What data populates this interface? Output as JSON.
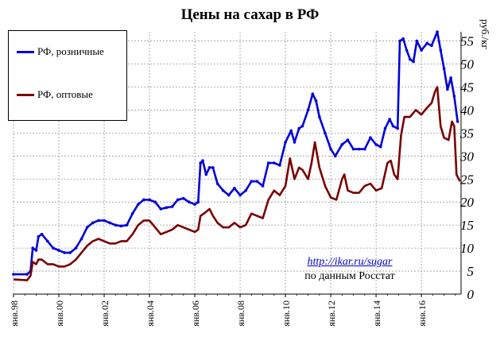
{
  "title": "Цены на сахар  в РФ",
  "unit": "руб./кг",
  "source_url": "http://ikar.ru/sugar",
  "source_note": "по данным  Росстат",
  "chart_data": {
    "type": "line",
    "title": "Цены на сахар  в РФ",
    "ylabel": "руб./кг",
    "ylim": [
      0,
      57
    ],
    "yticks": [
      0,
      5,
      10,
      15,
      20,
      25,
      30,
      35,
      40,
      45,
      50,
      55
    ],
    "ytick_labels": [
      "0",
      "5",
      "10",
      "15",
      "20",
      "25",
      "30",
      "35",
      "40",
      "45",
      "50",
      "55"
    ],
    "xlim": [
      1998.0,
      2017.75
    ],
    "xticks": [
      1998,
      2000,
      2002,
      2004,
      2006,
      2008,
      2010,
      2012,
      2014,
      2016
    ],
    "xtick_labels": [
      "янв.98",
      "янв.00",
      "янв.02",
      "янв.04",
      "янв.06",
      "янв.08",
      "янв.10",
      "янв.12",
      "янв.14",
      "янв.16"
    ],
    "grid": true,
    "legend_position": "top-left",
    "series": [
      {
        "name": "РФ, розничные",
        "color": "#0000dd",
        "markers": true,
        "points": [
          [
            1998.0,
            4.3
          ],
          [
            1998.6,
            4.3
          ],
          [
            1998.75,
            5.0
          ],
          [
            1998.85,
            10.0
          ],
          [
            1999.0,
            9.5
          ],
          [
            1999.1,
            12.5
          ],
          [
            1999.25,
            13.0
          ],
          [
            1999.5,
            11.5
          ],
          [
            1999.75,
            10.0
          ],
          [
            2000.0,
            9.5
          ],
          [
            2000.25,
            9.0
          ],
          [
            2000.5,
            9.0
          ],
          [
            2000.75,
            10.0
          ],
          [
            2001.0,
            12.0
          ],
          [
            2001.25,
            14.5
          ],
          [
            2001.5,
            15.5
          ],
          [
            2001.75,
            16.0
          ],
          [
            2002.0,
            16.0
          ],
          [
            2002.25,
            15.5
          ],
          [
            2002.5,
            15.0
          ],
          [
            2002.75,
            14.8
          ],
          [
            2003.0,
            15.0
          ],
          [
            2003.25,
            17.5
          ],
          [
            2003.5,
            19.5
          ],
          [
            2003.75,
            20.5
          ],
          [
            2004.0,
            20.5
          ],
          [
            2004.25,
            20.0
          ],
          [
            2004.5,
            18.5
          ],
          [
            2004.75,
            18.8
          ],
          [
            2005.0,
            19.0
          ],
          [
            2005.25,
            20.5
          ],
          [
            2005.5,
            20.8
          ],
          [
            2005.75,
            20.0
          ],
          [
            2006.0,
            19.5
          ],
          [
            2006.15,
            20.0
          ],
          [
            2006.25,
            28.5
          ],
          [
            2006.35,
            29.0
          ],
          [
            2006.5,
            26.0
          ],
          [
            2006.65,
            27.5
          ],
          [
            2006.8,
            27.5
          ],
          [
            2007.0,
            24.0
          ],
          [
            2007.25,
            22.5
          ],
          [
            2007.5,
            21.5
          ],
          [
            2007.75,
            23.0
          ],
          [
            2008.0,
            21.5
          ],
          [
            2008.25,
            22.5
          ],
          [
            2008.5,
            24.5
          ],
          [
            2008.75,
            24.5
          ],
          [
            2009.0,
            23.5
          ],
          [
            2009.25,
            28.5
          ],
          [
            2009.5,
            28.5
          ],
          [
            2009.75,
            28.0
          ],
          [
            2010.0,
            33.0
          ],
          [
            2010.25,
            35.5
          ],
          [
            2010.4,
            33.0
          ],
          [
            2010.6,
            36.0
          ],
          [
            2010.75,
            36.5
          ],
          [
            2011.0,
            40.0
          ],
          [
            2011.2,
            43.5
          ],
          [
            2011.35,
            42.0
          ],
          [
            2011.5,
            38.5
          ],
          [
            2011.75,
            35.0
          ],
          [
            2012.0,
            31.5
          ],
          [
            2012.2,
            30.0
          ],
          [
            2012.5,
            32.5
          ],
          [
            2012.75,
            33.5
          ],
          [
            2013.0,
            31.5
          ],
          [
            2013.25,
            31.5
          ],
          [
            2013.5,
            31.5
          ],
          [
            2013.75,
            34.0
          ],
          [
            2014.0,
            32.5
          ],
          [
            2014.2,
            32.0
          ],
          [
            2014.4,
            36.0
          ],
          [
            2014.6,
            38.0
          ],
          [
            2014.75,
            36.5
          ],
          [
            2014.95,
            36.0
          ],
          [
            2015.05,
            55.0
          ],
          [
            2015.2,
            55.5
          ],
          [
            2015.35,
            53.0
          ],
          [
            2015.5,
            51.0
          ],
          [
            2015.65,
            50.5
          ],
          [
            2015.8,
            55.0
          ],
          [
            2016.0,
            53.0
          ],
          [
            2016.25,
            54.5
          ],
          [
            2016.45,
            54.0
          ],
          [
            2016.7,
            57.0
          ],
          [
            2016.85,
            53.0
          ],
          [
            2017.0,
            49.0
          ],
          [
            2017.15,
            44.5
          ],
          [
            2017.3,
            47.0
          ],
          [
            2017.45,
            43.0
          ],
          [
            2017.6,
            37.5
          ]
        ]
      },
      {
        "name": "РФ, оптовые",
        "color": "#7a0000",
        "markers": false,
        "points": [
          [
            1998.0,
            3.2
          ],
          [
            1998.6,
            3.0
          ],
          [
            1998.75,
            4.0
          ],
          [
            1998.85,
            7.0
          ],
          [
            1999.0,
            6.5
          ],
          [
            1999.1,
            7.5
          ],
          [
            1999.25,
            7.5
          ],
          [
            1999.5,
            6.5
          ],
          [
            1999.75,
            6.5
          ],
          [
            2000.0,
            6.0
          ],
          [
            2000.25,
            6.0
          ],
          [
            2000.5,
            6.5
          ],
          [
            2000.75,
            7.5
          ],
          [
            2001.0,
            9.0
          ],
          [
            2001.25,
            10.5
          ],
          [
            2001.5,
            11.5
          ],
          [
            2001.75,
            12.0
          ],
          [
            2002.0,
            11.5
          ],
          [
            2002.25,
            11.0
          ],
          [
            2002.5,
            11.0
          ],
          [
            2002.75,
            11.5
          ],
          [
            2003.0,
            11.5
          ],
          [
            2003.25,
            13.0
          ],
          [
            2003.5,
            15.0
          ],
          [
            2003.75,
            16.0
          ],
          [
            2004.0,
            16.0
          ],
          [
            2004.25,
            14.5
          ],
          [
            2004.5,
            13.0
          ],
          [
            2004.75,
            13.5
          ],
          [
            2005.0,
            14.0
          ],
          [
            2005.25,
            15.0
          ],
          [
            2005.5,
            14.5
          ],
          [
            2005.75,
            14.0
          ],
          [
            2006.0,
            13.5
          ],
          [
            2006.15,
            14.0
          ],
          [
            2006.25,
            17.0
          ],
          [
            2006.4,
            17.5
          ],
          [
            2006.65,
            18.5
          ],
          [
            2006.8,
            17.0
          ],
          [
            2007.0,
            15.5
          ],
          [
            2007.25,
            14.5
          ],
          [
            2007.5,
            14.5
          ],
          [
            2007.75,
            15.5
          ],
          [
            2008.0,
            14.5
          ],
          [
            2008.25,
            15.0
          ],
          [
            2008.5,
            17.5
          ],
          [
            2008.75,
            17.0
          ],
          [
            2009.0,
            16.5
          ],
          [
            2009.25,
            20.5
          ],
          [
            2009.5,
            22.5
          ],
          [
            2009.75,
            21.5
          ],
          [
            2010.0,
            23.5
          ],
          [
            2010.2,
            29.5
          ],
          [
            2010.4,
            25.0
          ],
          [
            2010.6,
            27.5
          ],
          [
            2010.75,
            27.0
          ],
          [
            2011.0,
            25.0
          ],
          [
            2011.15,
            28.5
          ],
          [
            2011.3,
            33.0
          ],
          [
            2011.5,
            27.5
          ],
          [
            2011.75,
            23.5
          ],
          [
            2012.0,
            21.0
          ],
          [
            2012.25,
            20.5
          ],
          [
            2012.5,
            25.0
          ],
          [
            2012.6,
            26.0
          ],
          [
            2012.75,
            22.5
          ],
          [
            2013.0,
            22.0
          ],
          [
            2013.25,
            22.0
          ],
          [
            2013.5,
            23.5
          ],
          [
            2013.75,
            24.0
          ],
          [
            2014.0,
            22.5
          ],
          [
            2014.25,
            23.0
          ],
          [
            2014.5,
            28.5
          ],
          [
            2014.65,
            29.0
          ],
          [
            2014.8,
            26.0
          ],
          [
            2014.95,
            25.0
          ],
          [
            2015.1,
            34.5
          ],
          [
            2015.25,
            38.5
          ],
          [
            2015.5,
            38.5
          ],
          [
            2015.75,
            40.0
          ],
          [
            2016.0,
            39.0
          ],
          [
            2016.25,
            40.5
          ],
          [
            2016.45,
            41.5
          ],
          [
            2016.6,
            44.0
          ],
          [
            2016.7,
            45.0
          ],
          [
            2016.85,
            36.5
          ],
          [
            2017.0,
            34.0
          ],
          [
            2017.2,
            33.5
          ],
          [
            2017.35,
            37.5
          ],
          [
            2017.45,
            36.5
          ],
          [
            2017.55,
            26.0
          ],
          [
            2017.7,
            24.5
          ]
        ]
      }
    ]
  }
}
